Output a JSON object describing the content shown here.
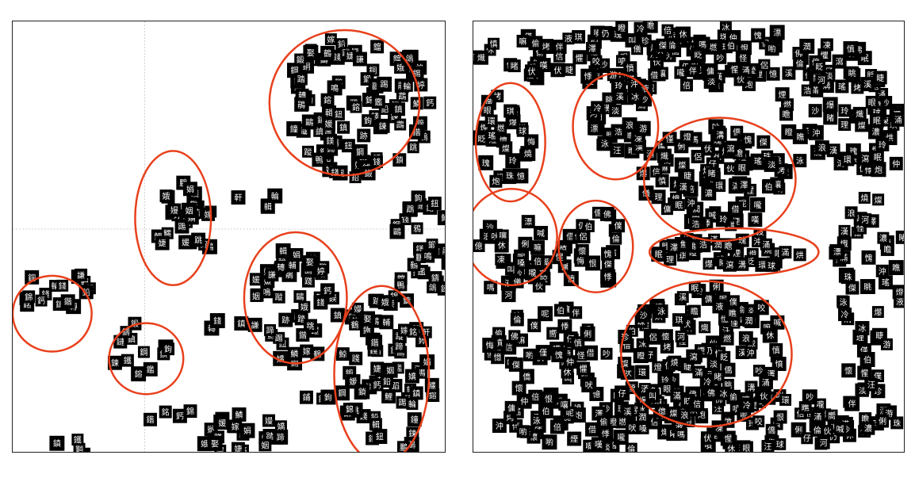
{
  "panels": [
    {
      "id": "left",
      "highlight_color": "#e8401c",
      "tile_color": "#000000",
      "char_color": "#ffffff",
      "gridline_color": "#c0c0c0",
      "glyphs": [
        "鈣",
        "鍇",
        "銘",
        "錦",
        "銅",
        "鉛",
        "錢",
        "鍛",
        "鏈",
        "鋼",
        "鐵",
        "鎮",
        "鋪",
        "鎖",
        "鍊",
        "鉤",
        "鑄",
        "鑑",
        "鎔",
        "鈕",
        "錫",
        "鐘",
        "鐺",
        "鎂",
        "鵑",
        "鶴",
        "鴿",
        "鷗",
        "鵡",
        "鴨",
        "鵬",
        "鳴",
        "鴉",
        "鯨",
        "鯉",
        "鱗",
        "鱷",
        "鯊",
        "蹤",
        "躍",
        "蹈",
        "踢",
        "踏",
        "跡",
        "蹄",
        "踐",
        "跳",
        "嫁",
        "娟",
        "婷",
        "嫚",
        "媛",
        "娥",
        "嬌",
        "婕",
        "姻",
        "娶",
        "軒",
        "輔",
        "輪",
        "輯",
        "轉",
        "謙",
        "鎮",
        "錢"
      ]
    },
    {
      "id": "right",
      "highlight_color": "#e8401c",
      "tile_color": "#000000",
      "char_color": "#ffffff",
      "gridline_color": "#c0c0c0",
      "glyphs": [
        "儀",
        "億",
        "伙",
        "俐",
        "休",
        "倍",
        "伴",
        "信",
        "伏",
        "仔",
        "借",
        "偷",
        "僑",
        "傭",
        "倫",
        "佛",
        "仍",
        "仲",
        "僕",
        "僅",
        "侶",
        "傑",
        "伯",
        "慎",
        "憤",
        "惺",
        "懼",
        "悸",
        "懷",
        "恨",
        "悔",
        "愧",
        "憶",
        "怪",
        "煙",
        "燒",
        "爆",
        "烤",
        "炮",
        "熾",
        "燃",
        "烘",
        "燈",
        "燦",
        "瑤",
        "瑰",
        "理",
        "珍",
        "珠",
        "琪",
        "玲",
        "環",
        "球",
        "瑩",
        "眨",
        "眼",
        "瞧",
        "睫",
        "睹",
        "眠",
        "瞪",
        "眺",
        "瞻",
        "漢",
        "滿",
        "溝",
        "澤",
        "潤",
        "瀉",
        "沖",
        "浩",
        "涌",
        "淡",
        "濃",
        "河",
        "泳",
        "沙",
        "浪",
        "溪",
        "液",
        "凍",
        "冰",
        "冷",
        "汪",
        "漂",
        "游",
        "噴",
        "嘴",
        "喲",
        "嘛",
        "嚮",
        "嗎",
        "嘆",
        "喊",
        "吵",
        "叫",
        "吠",
        "呢",
        "咬",
        "嚨",
        "嗓",
        "嚷"
      ]
    }
  ]
}
